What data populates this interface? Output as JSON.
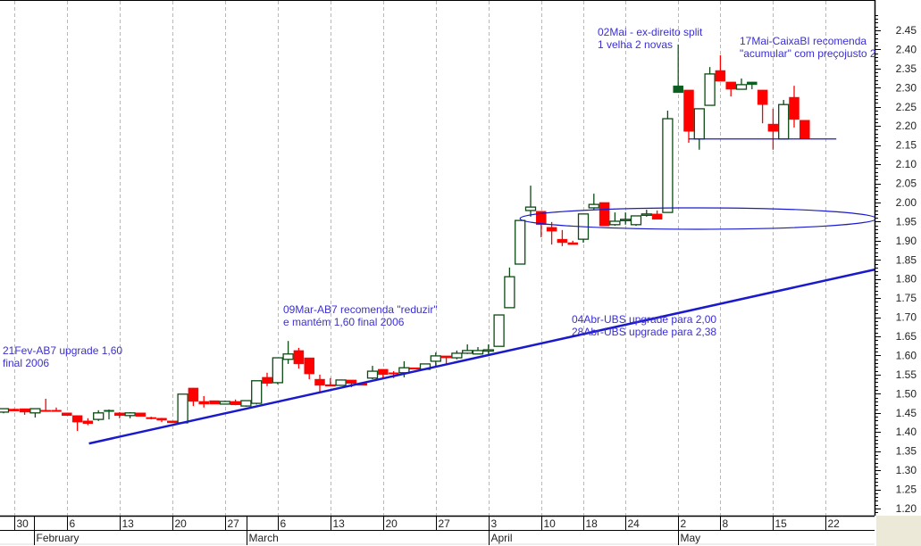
{
  "colors": {
    "up_border": "#0b4a12",
    "up_filled": "#0b5e1f",
    "down": "#ff0000",
    "trend": "#1a1acc",
    "annotation": "#3b2fd3",
    "grid": "#b8b8b8"
  },
  "annotations": {
    "a1_l1": "21Fev-AB7 upgrade 1,60",
    "a1_l2": "final 2006",
    "a2_l1": "09Mar-AB7 recomenda \"reduzir\"",
    "a2_l2": "e mantém 1,60 final 2006",
    "a3_l1": "04Abr-UBS upgrade para 2,00",
    "a3_l2": "28Abr-UBS upgrade para 2,38",
    "a4_l1": "02Mai - ex-direito split",
    "a4_l2": "1 velha 2 novas",
    "a5_l1": "17Mai-CaixaBI recomenda",
    "a5_l2": "\"acumular\" com preçojusto 2"
  },
  "chart_data": {
    "type": "candlestick",
    "title": "",
    "ylim": [
      1.18,
      2.49
    ],
    "y_ticks": [
      "2.45",
      "2.40",
      "2.35",
      "2.30",
      "2.25",
      "2.20",
      "2.15",
      "2.10",
      "2.05",
      "2.00",
      "1.95",
      "1.90",
      "1.85",
      "1.80",
      "1.75",
      "1.70",
      "1.65",
      "1.60",
      "1.55",
      "1.50",
      "1.45",
      "1.40",
      "1.35",
      "1.30",
      "1.25",
      "1.20"
    ],
    "x_ticks": [
      {
        "i": 1,
        "label": "30"
      },
      {
        "i": 6,
        "label": "6"
      },
      {
        "i": 11,
        "label": "13"
      },
      {
        "i": 16,
        "label": "20"
      },
      {
        "i": 21,
        "label": "27"
      },
      {
        "i": 26,
        "label": "6"
      },
      {
        "i": 31,
        "label": "13"
      },
      {
        "i": 36,
        "label": "20"
      },
      {
        "i": 41,
        "label": "27"
      },
      {
        "i": 46,
        "label": "3"
      },
      {
        "i": 51,
        "label": "10"
      },
      {
        "i": 55,
        "label": "18"
      },
      {
        "i": 59,
        "label": "24"
      },
      {
        "i": 64,
        "label": "2"
      },
      {
        "i": 68,
        "label": "8"
      },
      {
        "i": 73,
        "label": "15"
      },
      {
        "i": 78,
        "label": "22"
      }
    ],
    "months": [
      {
        "i": 2.9,
        "label": "February"
      },
      {
        "i": 23.05,
        "label": "March"
      },
      {
        "i": 46,
        "label": "April"
      },
      {
        "i": 64,
        "label": "May"
      }
    ],
    "grid": true,
    "candles_ohlc_kind": [
      [
        1.452,
        1.462,
        1.449,
        1.461,
        "up"
      ],
      [
        1.46,
        1.461,
        1.455,
        1.455,
        "down"
      ],
      [
        1.461,
        1.461,
        1.445,
        1.452,
        "down"
      ],
      [
        1.45,
        1.461,
        1.438,
        1.461,
        "up"
      ],
      [
        1.457,
        1.487,
        1.457,
        1.455,
        "down"
      ],
      [
        1.457,
        1.464,
        1.455,
        1.455,
        "down"
      ],
      [
        1.45,
        1.45,
        1.443,
        1.443,
        "down"
      ],
      [
        1.443,
        1.443,
        1.403,
        1.426,
        "down"
      ],
      [
        1.429,
        1.436,
        1.418,
        1.422,
        "down"
      ],
      [
        1.433,
        1.457,
        1.429,
        1.45,
        "up"
      ],
      [
        1.457,
        1.459,
        1.433,
        1.455,
        "filled"
      ],
      [
        1.45,
        1.452,
        1.436,
        1.443,
        "down"
      ],
      [
        1.443,
        1.452,
        1.436,
        1.45,
        "up"
      ],
      [
        1.45,
        1.45,
        1.441,
        1.441,
        "down"
      ],
      [
        1.438,
        1.44,
        1.433,
        1.435,
        "down"
      ],
      [
        1.436,
        1.437,
        1.426,
        1.431,
        "down"
      ],
      [
        1.429,
        1.429,
        1.424,
        1.424,
        "down"
      ],
      [
        1.424,
        1.499,
        1.424,
        1.499,
        "up"
      ],
      [
        1.515,
        1.515,
        1.468,
        1.48,
        "down"
      ],
      [
        1.48,
        1.494,
        1.464,
        1.473,
        "down"
      ],
      [
        1.482,
        1.482,
        1.473,
        1.473,
        "down"
      ],
      [
        1.473,
        1.482,
        1.473,
        1.48,
        "up"
      ],
      [
        1.48,
        1.485,
        1.47,
        1.471,
        "down"
      ],
      [
        1.468,
        1.482,
        1.466,
        1.482,
        "up"
      ],
      [
        1.475,
        1.534,
        1.472,
        1.534,
        "up"
      ],
      [
        1.543,
        1.555,
        1.52,
        1.527,
        "down"
      ],
      [
        1.529,
        1.594,
        1.525,
        1.594,
        "up"
      ],
      [
        1.59,
        1.638,
        1.578,
        1.604,
        "up"
      ],
      [
        1.613,
        1.62,
        1.566,
        1.578,
        "down"
      ],
      [
        1.594,
        1.594,
        1.538,
        1.552,
        "down"
      ],
      [
        1.538,
        1.55,
        1.503,
        1.522,
        "down"
      ],
      [
        1.524,
        1.541,
        1.52,
        1.52,
        "down"
      ],
      [
        1.522,
        1.536,
        1.522,
        1.536,
        "up"
      ],
      [
        1.536,
        1.536,
        1.517,
        1.527,
        "down"
      ],
      [
        1.527,
        1.527,
        1.522,
        1.522,
        "down"
      ],
      [
        1.541,
        1.573,
        1.538,
        1.559,
        "up"
      ],
      [
        1.564,
        1.564,
        1.541,
        1.55,
        "down"
      ],
      [
        1.555,
        1.559,
        1.541,
        1.552,
        "down"
      ],
      [
        1.555,
        1.585,
        1.543,
        1.568,
        "up"
      ],
      [
        1.568,
        1.568,
        1.564,
        1.564,
        "down"
      ],
      [
        1.564,
        1.578,
        1.562,
        1.578,
        "up"
      ],
      [
        1.585,
        1.608,
        1.573,
        1.599,
        "up"
      ],
      [
        1.599,
        1.599,
        1.578,
        1.594,
        "down"
      ],
      [
        1.594,
        1.613,
        1.59,
        1.606,
        "up"
      ],
      [
        1.606,
        1.629,
        1.604,
        1.613,
        "up"
      ],
      [
        1.604,
        1.622,
        1.604,
        1.613,
        "up"
      ],
      [
        1.615,
        1.629,
        1.604,
        1.615,
        "up"
      ],
      [
        1.624,
        1.706,
        1.624,
        1.706,
        "up"
      ],
      [
        1.725,
        1.83,
        1.725,
        1.806,
        "up"
      ],
      [
        1.839,
        1.953,
        1.839,
        1.953,
        "up"
      ],
      [
        1.979,
        2.044,
        1.963,
        1.988,
        "up"
      ],
      [
        1.977,
        1.977,
        1.909,
        1.942,
        "down"
      ],
      [
        1.935,
        1.949,
        1.89,
        1.925,
        "down"
      ],
      [
        1.904,
        1.928,
        1.886,
        1.895,
        "down"
      ],
      [
        1.895,
        1.9,
        1.89,
        1.89,
        "down"
      ],
      [
        1.904,
        1.97,
        1.895,
        1.97,
        "up"
      ],
      [
        1.986,
        2.023,
        1.98,
        1.995,
        "up"
      ],
      [
        2.0,
        2.0,
        1.939,
        1.939,
        "down"
      ],
      [
        1.942,
        1.974,
        1.939,
        1.951,
        "up"
      ],
      [
        1.956,
        1.974,
        1.942,
        1.956,
        "up"
      ],
      [
        1.942,
        1.965,
        1.939,
        1.965,
        "up"
      ],
      [
        1.97,
        1.981,
        1.963,
        1.97,
        "up"
      ],
      [
        1.97,
        1.979,
        1.956,
        1.956,
        "down"
      ],
      [
        1.974,
        2.24,
        1.974,
        2.219,
        "up"
      ],
      [
        2.287,
        2.413,
        2.287,
        2.305,
        "filled"
      ],
      [
        2.294,
        2.294,
        2.156,
        2.186,
        "down"
      ],
      [
        2.166,
        2.245,
        2.138,
        2.245,
        "up"
      ],
      [
        2.254,
        2.354,
        2.254,
        2.336,
        "up"
      ],
      [
        2.345,
        2.385,
        2.317,
        2.317,
        "down"
      ],
      [
        2.315,
        2.315,
        2.277,
        2.296,
        "down"
      ],
      [
        2.296,
        2.324,
        2.296,
        2.308,
        "up"
      ],
      [
        2.315,
        2.315,
        2.296,
        2.308,
        "filled"
      ],
      [
        2.294,
        2.294,
        2.207,
        2.256,
        "down"
      ],
      [
        2.205,
        2.245,
        2.138,
        2.186,
        "down"
      ],
      [
        2.166,
        2.268,
        2.166,
        2.256,
        "up"
      ],
      [
        2.275,
        2.305,
        2.196,
        2.217,
        "down"
      ],
      [
        2.215,
        2.215,
        2.166,
        2.166,
        "down"
      ]
    ],
    "trendline": {
      "from": [
        8.1,
        1.37
      ],
      "to": [
        82.7,
        1.825
      ]
    },
    "support_line": {
      "from": [
        65,
        2.166
      ],
      "to": [
        79,
        2.166
      ]
    },
    "ellipse": {
      "center": [
        65.9,
        1.958
      ],
      "radius_x": 16.9,
      "radius_y": 0.028
    }
  }
}
